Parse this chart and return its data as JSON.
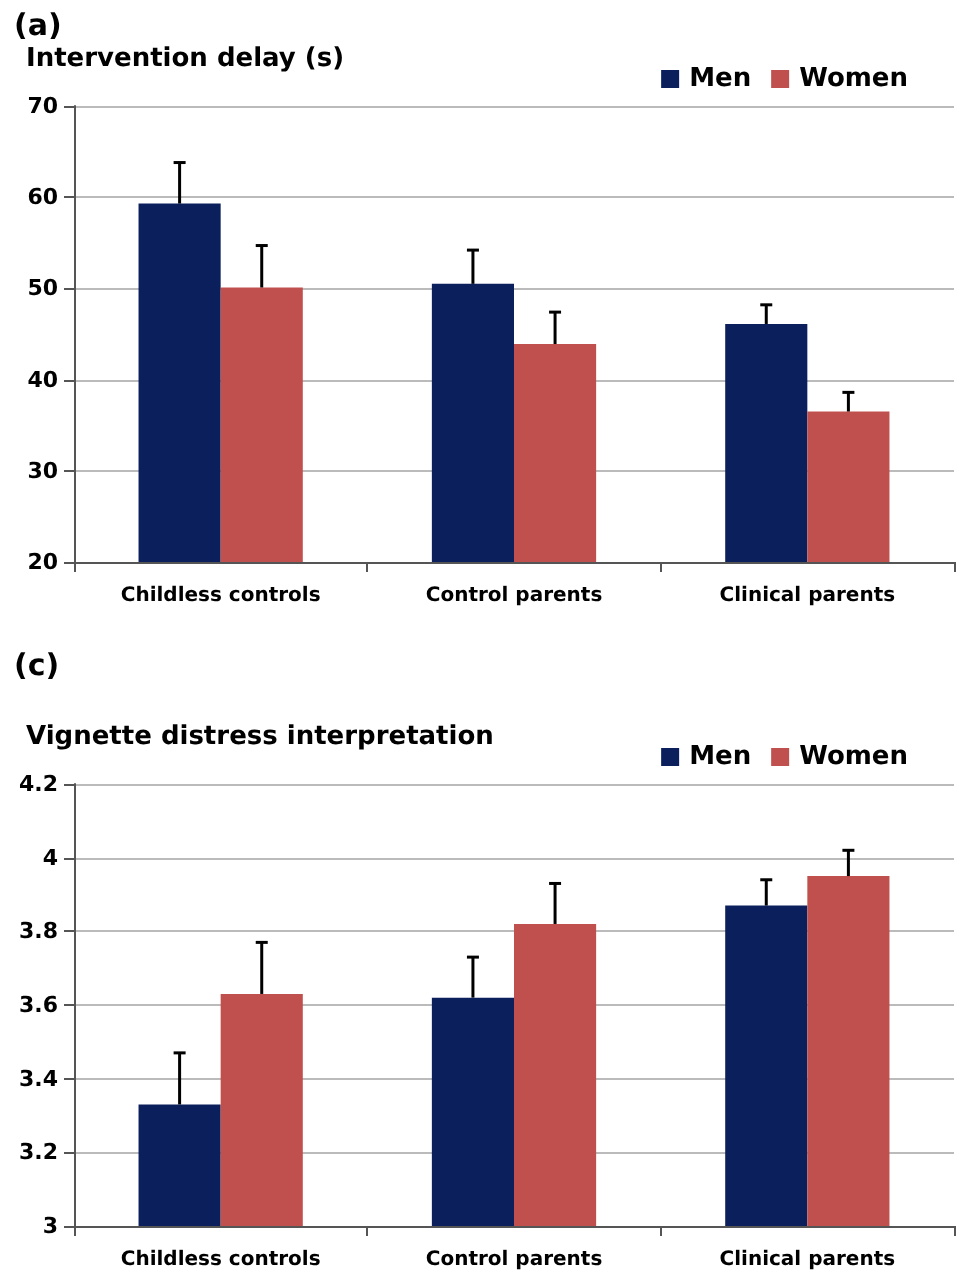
{
  "chart_data": [
    {
      "type": "bar",
      "title": "(a)",
      "ylabel": "Intervention delay (s)",
      "categories": [
        "Childless controls",
        "Control parents",
        "Clinical parents"
      ],
      "series": [
        {
          "name": "Men",
          "color": "#0b1f5c",
          "values": [
            59.3,
            50.5,
            46.1
          ],
          "errors": [
            [
              59.3,
              63.8
            ],
            [
              50.5,
              54.2
            ],
            [
              46.1,
              48.2
            ]
          ]
        },
        {
          "name": "Women",
          "color": "#c0504d",
          "values": [
            50.1,
            43.9,
            36.5
          ],
          "errors": [
            [
              50.1,
              54.7
            ],
            [
              43.9,
              47.4
            ],
            [
              36.5,
              38.6
            ]
          ]
        }
      ],
      "ylim": [
        20,
        70
      ],
      "yticks": [
        20,
        30,
        40,
        50,
        60,
        70
      ],
      "grid": "y",
      "legend": "top right"
    },
    {
      "type": "bar",
      "title": "(c)",
      "ylabel": "Vignette distress interpretation",
      "categories": [
        "Childless controls",
        "Control parents",
        "Clinical parents"
      ],
      "series": [
        {
          "name": "Men",
          "color": "#0b1f5c",
          "values": [
            3.33,
            3.62,
            3.87
          ],
          "errors": [
            [
              3.33,
              3.47
            ],
            [
              3.62,
              3.73
            ],
            [
              3.87,
              3.94
            ]
          ]
        },
        {
          "name": "Women",
          "color": "#c0504d",
          "values": [
            3.63,
            3.82,
            3.95
          ],
          "errors": [
            [
              3.63,
              3.77
            ],
            [
              3.82,
              3.93
            ],
            [
              3.95,
              4.02
            ]
          ]
        }
      ],
      "ylim": [
        3,
        4.2
      ],
      "yticks": [
        3,
        3.2,
        3.4,
        3.6,
        3.8,
        4,
        4.2
      ],
      "grid": "y",
      "legend": "top right"
    }
  ]
}
